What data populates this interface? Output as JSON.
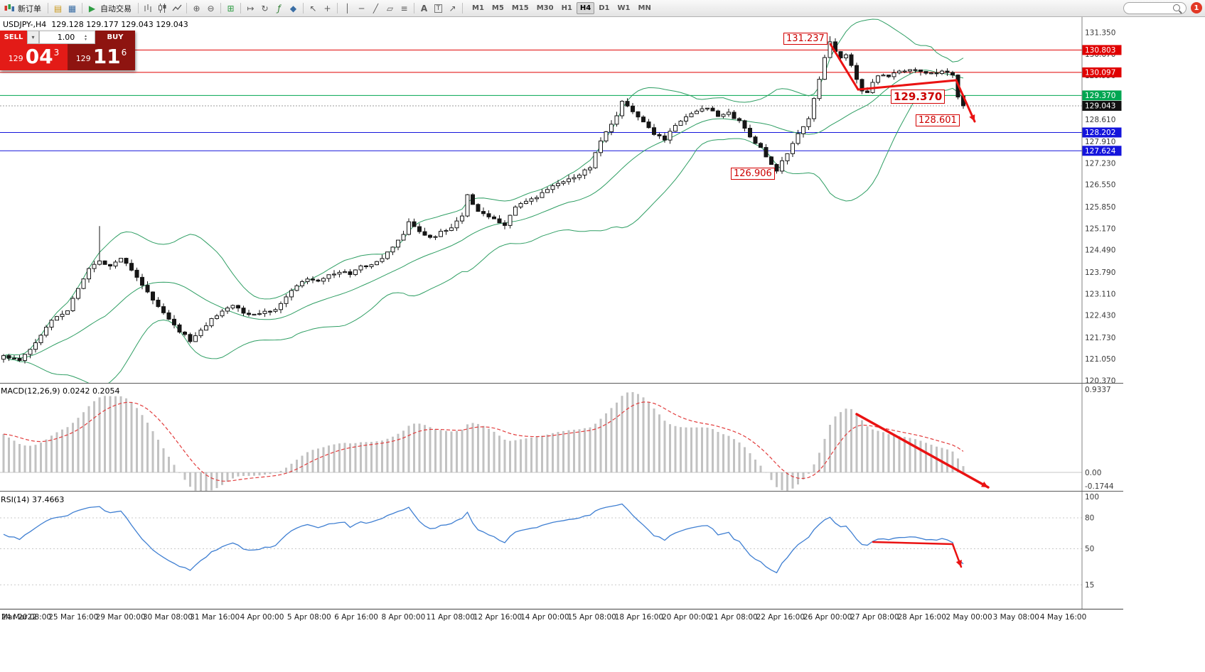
{
  "toolbar": {
    "new_order_label": "新订单",
    "auto_trading_label": "自动交易",
    "timeframes": [
      "M1",
      "M5",
      "M15",
      "M30",
      "H1",
      "H4",
      "D1",
      "W1",
      "MN"
    ],
    "active_timeframe": "H4",
    "notification_badge": "1",
    "search_value": ""
  },
  "quote_panel": {
    "symbol_line": "USDJPY-,H4  129.128 129.177 129.043 129.043",
    "sell_label": "SELL",
    "buy_label": "BUY",
    "volume": "1.00",
    "sell_price": {
      "prefix": "129",
      "big": "04",
      "sup": "3"
    },
    "buy_price": {
      "prefix": "129",
      "big": "11",
      "sup": "6"
    }
  },
  "chart_data": {
    "type": "candlestick",
    "symbol": "USDJPY-",
    "timeframe": "H4",
    "ohlc": {
      "open": "129.128",
      "high": "129.177",
      "low": "129.043",
      "close": "129.043"
    },
    "price_axis_ticks": [
      "131.350",
      "130.670",
      "129.990",
      "129.310",
      "128.610",
      "127.910",
      "127.230",
      "126.550",
      "125.850",
      "125.170",
      "124.490",
      "123.790",
      "123.110",
      "122.430",
      "121.730",
      "121.050",
      "120.370"
    ],
    "levels": [
      {
        "label": "130.803",
        "value": 130.803,
        "color": "#e00000",
        "style": "line"
      },
      {
        "label": "130.097",
        "value": 130.097,
        "color": "#e00000",
        "style": "line"
      },
      {
        "label": "129.370",
        "value": 129.37,
        "color": "#00a651",
        "style": "line"
      },
      {
        "label": "129.043",
        "value": 129.043,
        "color": "#101010",
        "style": "bid"
      },
      {
        "label": "128.202",
        "value": 128.202,
        "color": "#1414dc",
        "style": "line"
      },
      {
        "label": "127.624",
        "value": 127.624,
        "color": "#1414dc",
        "style": "line"
      }
    ],
    "annotations": [
      {
        "text": "131.237"
      },
      {
        "text": "129.370"
      },
      {
        "text": "128.601"
      },
      {
        "text": "126.906"
      }
    ],
    "bollinger": {
      "period": 20,
      "deviation": 2
    },
    "candle_count": 181,
    "price_path": [
      [
        0,
        121.15
      ],
      [
        3,
        121.0
      ],
      [
        5,
        121.35
      ],
      [
        7,
        121.8
      ],
      [
        9,
        122.3
      ],
      [
        12,
        122.6
      ],
      [
        14,
        123.3
      ],
      [
        16,
        123.9
      ],
      [
        18,
        124.15
      ],
      [
        20,
        124.0
      ],
      [
        22,
        124.25
      ],
      [
        24,
        123.9
      ],
      [
        26,
        123.4
      ],
      [
        28,
        122.9
      ],
      [
        30,
        122.5
      ],
      [
        32,
        122.1
      ],
      [
        34,
        121.8
      ],
      [
        35,
        121.6
      ],
      [
        37,
        121.95
      ],
      [
        39,
        122.3
      ],
      [
        41,
        122.6
      ],
      [
        43,
        122.75
      ],
      [
        45,
        122.5
      ],
      [
        47,
        122.45
      ],
      [
        49,
        122.55
      ],
      [
        51,
        122.65
      ],
      [
        53,
        123.0
      ],
      [
        55,
        123.4
      ],
      [
        57,
        123.6
      ],
      [
        59,
        123.55
      ],
      [
        61,
        123.7
      ],
      [
        63,
        123.8
      ],
      [
        65,
        123.75
      ],
      [
        67,
        123.95
      ],
      [
        69,
        124.05
      ],
      [
        71,
        124.2
      ],
      [
        73,
        124.6
      ],
      [
        75,
        125.0
      ],
      [
        76,
        125.35
      ],
      [
        78,
        125.1
      ],
      [
        80,
        124.85
      ],
      [
        82,
        125.05
      ],
      [
        84,
        125.15
      ],
      [
        86,
        125.6
      ],
      [
        87,
        126.2
      ],
      [
        88,
        125.9
      ],
      [
        90,
        125.6
      ],
      [
        92,
        125.45
      ],
      [
        94,
        125.3
      ],
      [
        96,
        125.85
      ],
      [
        98,
        126.0
      ],
      [
        100,
        126.15
      ],
      [
        102,
        126.4
      ],
      [
        104,
        126.6
      ],
      [
        106,
        126.7
      ],
      [
        108,
        126.9
      ],
      [
        110,
        127.1
      ],
      [
        111,
        127.6
      ],
      [
        113,
        128.2
      ],
      [
        115,
        128.7
      ],
      [
        116,
        129.15
      ],
      [
        118,
        128.9
      ],
      [
        120,
        128.5
      ],
      [
        122,
        128.15
      ],
      [
        124,
        128.0
      ],
      [
        126,
        128.45
      ],
      [
        128,
        128.7
      ],
      [
        130,
        128.9
      ],
      [
        132,
        129.0
      ],
      [
        134,
        128.75
      ],
      [
        136,
        128.8
      ],
      [
        138,
        128.55
      ],
      [
        140,
        128.1
      ],
      [
        142,
        127.7
      ],
      [
        144,
        127.15
      ],
      [
        145,
        127.0
      ],
      [
        147,
        127.55
      ],
      [
        149,
        128.15
      ],
      [
        151,
        128.6
      ],
      [
        152,
        129.3
      ],
      [
        153,
        129.9
      ],
      [
        154,
        130.6
      ],
      [
        155,
        131.05
      ],
      [
        156,
        130.75
      ],
      [
        157,
        130.55
      ],
      [
        158,
        130.65
      ],
      [
        159,
        130.3
      ],
      [
        160,
        129.85
      ],
      [
        161,
        129.55
      ],
      [
        162,
        129.5
      ],
      [
        163,
        129.75
      ],
      [
        164,
        129.95
      ],
      [
        165,
        130.05
      ],
      [
        166,
        130.0
      ],
      [
        168,
        130.1
      ],
      [
        170,
        130.2
      ],
      [
        172,
        130.1
      ],
      [
        174,
        130.05
      ],
      [
        176,
        130.1
      ],
      [
        177,
        130.05
      ],
      [
        178,
        130.0
      ],
      [
        179,
        129.35
      ],
      [
        180,
        129.043
      ]
    ]
  },
  "macd_panel": {
    "label": "MACD(12,26,9) 0.0242 0.2054",
    "axis": [
      "0.9337",
      "0.00",
      "-0.1744"
    ]
  },
  "rsi_panel": {
    "label": "RSI(14) 37.4663",
    "axis": [
      "100",
      "80",
      "50",
      "15"
    ]
  },
  "time_axis": {
    "labels": [
      "Mar 2022",
      "24 Mar 08:00",
      "25 Mar 16:00",
      "29 Mar 00:00",
      "30 Mar 08:00",
      "31 Mar 16:00",
      "4 Apr 00:00",
      "5 Apr 08:00",
      "6 Apr 16:00",
      "8 Apr 00:00",
      "11 Apr 08:00",
      "12 Apr 16:00",
      "14 Apr 00:00",
      "15 Apr 08:00",
      "18 Apr 16:00",
      "20 Apr 00:00",
      "21 Apr 08:00",
      "22 Apr 16:00",
      "26 Apr 00:00",
      "27 Apr 08:00",
      "28 Apr 16:00",
      "2 May 00:00",
      "3 May 08:00",
      "4 May 16:00"
    ]
  }
}
